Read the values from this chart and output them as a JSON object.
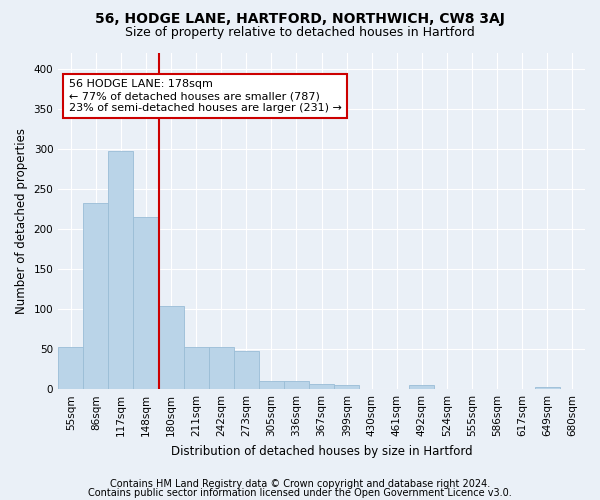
{
  "title": "56, HODGE LANE, HARTFORD, NORTHWICH, CW8 3AJ",
  "subtitle": "Size of property relative to detached houses in Hartford",
  "xlabel": "Distribution of detached houses by size in Hartford",
  "ylabel": "Number of detached properties",
  "bin_labels": [
    "55sqm",
    "86sqm",
    "117sqm",
    "148sqm",
    "180sqm",
    "211sqm",
    "242sqm",
    "273sqm",
    "305sqm",
    "336sqm",
    "367sqm",
    "399sqm",
    "430sqm",
    "461sqm",
    "492sqm",
    "524sqm",
    "555sqm",
    "586sqm",
    "617sqm",
    "649sqm",
    "680sqm"
  ],
  "bar_values": [
    52,
    232,
    297,
    215,
    104,
    52,
    52,
    48,
    10,
    10,
    7,
    5,
    0,
    0,
    5,
    0,
    0,
    0,
    0,
    3,
    0
  ],
  "bar_color": "#bad4e8",
  "bar_edge_color": "#9abdd6",
  "vline_index": 3.5,
  "annotation_text": "56 HODGE LANE: 178sqm\n← 77% of detached houses are smaller (787)\n23% of semi-detached houses are larger (231) →",
  "annotation_box_color": "#ffffff",
  "annotation_box_edge_color": "#cc0000",
  "vline_color": "#cc0000",
  "ylim": [
    0,
    420
  ],
  "yticks": [
    0,
    50,
    100,
    150,
    200,
    250,
    300,
    350,
    400
  ],
  "footer_line1": "Contains HM Land Registry data © Crown copyright and database right 2024.",
  "footer_line2": "Contains public sector information licensed under the Open Government Licence v3.0.",
  "bg_color": "#eaf0f7",
  "plot_bg_color": "#eaf0f7",
  "grid_color": "#ffffff",
  "title_fontsize": 10,
  "subtitle_fontsize": 9,
  "axis_label_fontsize": 8.5,
  "tick_fontsize": 7.5,
  "footer_fontsize": 7
}
